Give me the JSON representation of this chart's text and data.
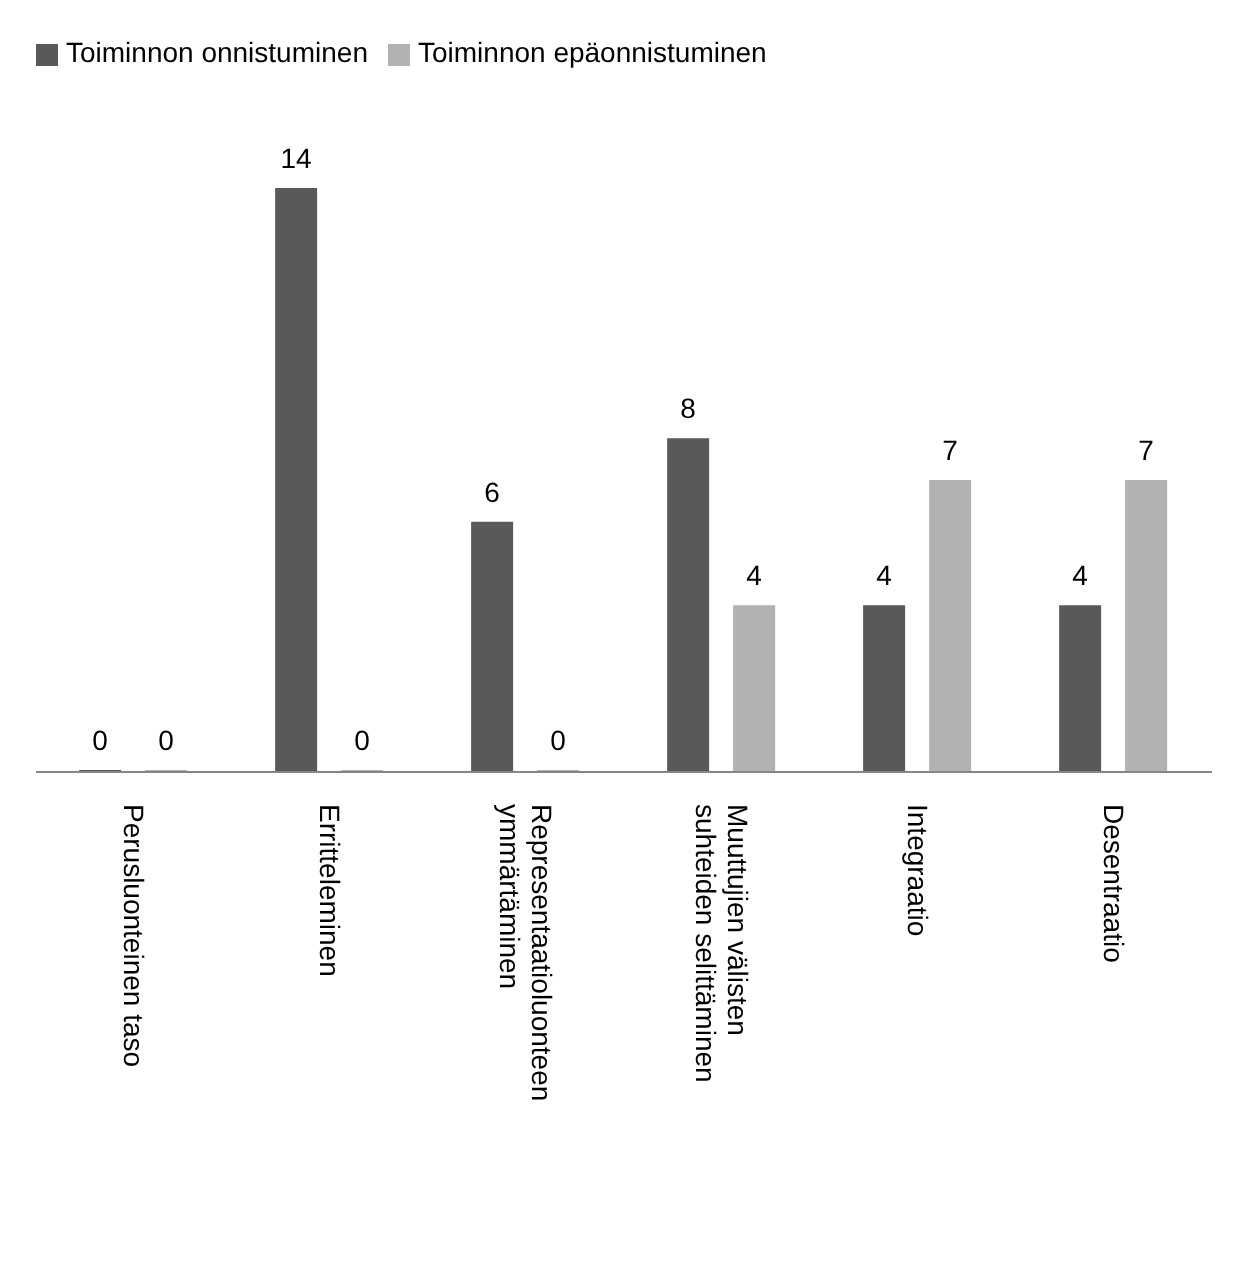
{
  "chart_data": {
    "type": "bar",
    "categories": [
      "Perusluonteinen taso",
      "Erritteleminen",
      "Representaatioluonteen ymmärtäminen",
      "Muuttujien välisten suhteiden selittäminen",
      "Integraatio",
      "Desentraatio"
    ],
    "series": [
      {
        "name": "Toiminnon onnistuminen",
        "color": "#595959",
        "values": [
          0,
          14,
          6,
          8,
          4,
          4
        ]
      },
      {
        "name": "Toiminnon epäonnistuminen",
        "color": "#b2b2b2",
        "values": [
          0,
          0,
          0,
          4,
          7,
          7
        ]
      }
    ],
    "data_labels": true,
    "legend": "top left",
    "grid": false
  }
}
